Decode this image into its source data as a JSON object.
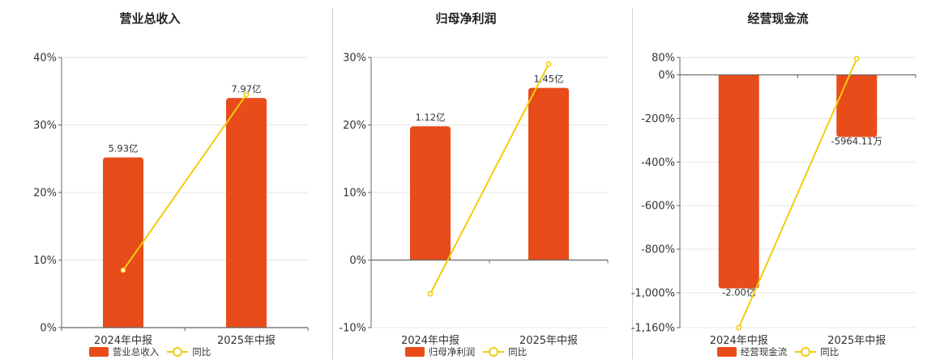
{
  "colors": {
    "bar": "#E84C1A",
    "line": "#F2CC0C",
    "grid": "#e6e6e6",
    "axis": "#666666"
  },
  "legend": {
    "bar_label_0": "营业总收入",
    "bar_label_1": "归母净利润",
    "bar_label_2": "经营现金流",
    "line_label": "同比"
  },
  "chart_data": [
    {
      "type": "bar",
      "title": "营业总收入",
      "categories": [
        "2024年中报",
        "2025年中报"
      ],
      "series": [
        {
          "name": "营业总收入",
          "type": "bar",
          "values": [
            25.2,
            34.0
          ],
          "labels": [
            "5.93亿",
            "7.97亿"
          ]
        },
        {
          "name": "同比",
          "type": "line",
          "values": [
            8.5,
            34.5
          ]
        }
      ],
      "yticks": [
        "40%",
        "30%",
        "20%",
        "10%",
        "0%"
      ],
      "ylim": [
        0,
        40
      ],
      "grid": true,
      "legend": "bottom"
    },
    {
      "type": "bar",
      "title": "归母净利润",
      "categories": [
        "2024年中报",
        "2025年中报"
      ],
      "series": [
        {
          "name": "归母净利润",
          "type": "bar",
          "values": [
            19.8,
            25.5
          ],
          "labels": [
            "1.12亿",
            "1.45亿"
          ]
        },
        {
          "name": "同比",
          "type": "line",
          "values": [
            -5,
            29
          ]
        }
      ],
      "yticks": [
        "30%",
        "20%",
        "10%",
        "0%",
        "-10%"
      ],
      "ylim": [
        -10,
        30
      ],
      "grid": true,
      "legend": "bottom"
    },
    {
      "type": "bar",
      "title": "经营现金流",
      "categories": [
        "2024年中报",
        "2025年中报"
      ],
      "series": [
        {
          "name": "经营现金流",
          "type": "bar",
          "values": [
            -980,
            -285
          ],
          "labels": [
            "-2.00亿",
            "-5964.11万"
          ]
        },
        {
          "name": "同比",
          "type": "line",
          "values": [
            -1160,
            75
          ]
        }
      ],
      "yticks": [
        "80%",
        "0%",
        "-200%",
        "-400%",
        "-600%",
        "-800%",
        "-1,000%",
        "-1,160%"
      ],
      "ytick_values": [
        80,
        0,
        -200,
        -400,
        -600,
        -800,
        -1000,
        -1160
      ],
      "ylim": [
        -1160,
        80
      ],
      "grid": true,
      "legend": "bottom"
    }
  ]
}
